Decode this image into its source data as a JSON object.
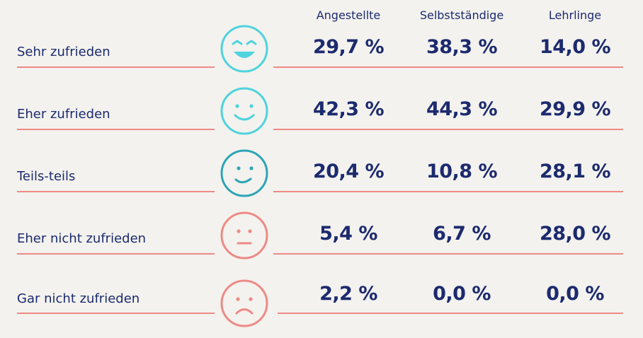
{
  "headers": [
    "Angestellte",
    "Selbstständige",
    "Lehrlinge"
  ],
  "rows": [
    {
      "label": "Sehr zufrieden",
      "values": [
        "29,7 %",
        "38,3 %",
        "14,0 %"
      ],
      "icon": "very-happy-face-icon",
      "color": "#4fd3dd"
    },
    {
      "label": "Eher zufrieden",
      "values": [
        "42,3 %",
        "44,3 %",
        "29,9 %"
      ],
      "icon": "happy-face-icon",
      "color": "#4fd3dd"
    },
    {
      "label": "Teils-teils",
      "values": [
        "20,4 %",
        "10,8 %",
        "28,1 %"
      ],
      "icon": "neutral-smile-face-icon",
      "color": "#2ea4b6"
    },
    {
      "label": "Eher nicht zufrieden",
      "values": [
        "5,4 %",
        "6,7 %",
        "28,0 %"
      ],
      "icon": "neutral-face-icon",
      "color": "#ee8a86"
    },
    {
      "label": "Gar nicht zufrieden",
      "values": [
        "2,2 %",
        "0,0 %",
        "0,0 %"
      ],
      "icon": "sad-face-icon",
      "color": "#ee8a86"
    }
  ]
}
